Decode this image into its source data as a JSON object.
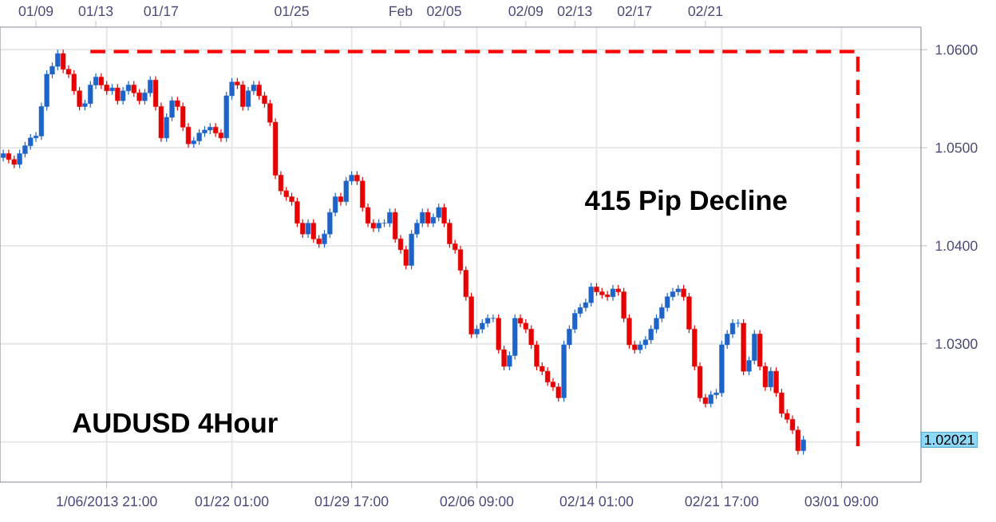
{
  "chart_data": {
    "type": "candlestick",
    "categories": [
      null,
      null,
      null,
      null,
      null,
      null,
      null,
      null,
      null,
      null,
      null,
      null,
      null,
      null,
      null,
      null,
      null,
      null,
      null,
      "1/06/2013 21:00",
      null,
      null,
      null,
      null,
      null,
      null,
      null,
      null,
      null,
      null,
      null,
      null,
      null,
      null,
      null,
      null,
      null,
      null,
      null,
      null,
      null,
      null,
      "01/22 01:00",
      null,
      null,
      null,
      null,
      null,
      null,
      null,
      null,
      null,
      null,
      null,
      null,
      null,
      null,
      null,
      null,
      null,
      null,
      null,
      null,
      null,
      "01/29 17:00",
      null,
      null,
      null,
      null,
      null,
      null,
      null,
      null,
      null,
      null,
      null,
      null,
      null,
      null,
      null,
      null,
      null,
      null,
      null,
      null,
      null,
      null,
      "02/06 09:00",
      null,
      null,
      null,
      null,
      null,
      null,
      null,
      null,
      null,
      null,
      null,
      null,
      null,
      null,
      null,
      null,
      null,
      null,
      null,
      null,
      null,
      "02/14 01:00",
      null,
      null,
      null,
      null,
      null,
      null,
      null,
      null,
      null,
      null,
      null,
      null,
      null,
      null,
      null,
      null,
      null,
      null,
      null,
      null,
      null,
      null,
      "02/21 17:00",
      null,
      null,
      null,
      null,
      null,
      null,
      null,
      null,
      null,
      null,
      null,
      null,
      null,
      null,
      null,
      null,
      null,
      null,
      null,
      null,
      null,
      "03/01 09:00",
      null,
      null,
      null,
      null,
      null,
      null,
      null,
      null,
      null,
      null,
      null,
      null,
      null,
      null
    ],
    "ylim": [
      1.0159,
      1.0623
    ],
    "yticks": [
      {
        "value": 1.02,
        "label": null
      },
      {
        "value": 1.03,
        "label": "1.0300"
      },
      {
        "value": 1.04,
        "label": "1.0400"
      },
      {
        "value": 1.05,
        "label": "1.0500"
      },
      {
        "value": 1.06,
        "label": "1.0600"
      }
    ],
    "grid": true,
    "annotations": [
      "415 Pip Decline",
      "AUDUSD 4Hour",
      "1.02021",
      "01/09",
      "01/13",
      "01/17",
      "01/25",
      "Feb",
      "02/05",
      "02/09",
      "02/13",
      "02/17",
      "02/21"
    ],
    "series": [
      {
        "colors": [
          "#1e64c8",
          "#e60000",
          "#e60000",
          "#1e64c8",
          "#1e64c8",
          "#1e64c8",
          "#1e64c8",
          "#1e64c8",
          "#1e64c8",
          "#1e64c8",
          "#1e64c8",
          "#e60000",
          "#e60000",
          "#e60000",
          "#e60000",
          "#1e64c8",
          "#1e64c8",
          "#1e64c8",
          "#e60000",
          "#e60000",
          "#1e64c8",
          "#e60000",
          "#1e64c8",
          "#1e64c8",
          "#e60000",
          "#e60000",
          "#1e64c8",
          "#1e64c8",
          "#e60000",
          "#e60000",
          "#1e64c8",
          "#1e64c8",
          "#e60000",
          "#e60000",
          "#e60000",
          "#1e64c8",
          "#1e64c8",
          "#1e64c8",
          "#1e64c8",
          "#e60000",
          "#e60000",
          "#1e64c8",
          "#1e64c8",
          "#e60000",
          "#e60000",
          "#1e64c8",
          "#1e64c8",
          "#e60000",
          "#e60000",
          "#e60000",
          "#e60000",
          "#e60000",
          "#e60000",
          "#e60000",
          "#e60000",
          "#e60000",
          "#1e64c8",
          "#e60000",
          "#e60000",
          "#1e64c8",
          "#1e64c8",
          "#1e64c8",
          "#e60000",
          "#1e64c8",
          "#1e64c8",
          "#e60000",
          "#e60000",
          "#e60000",
          "#e60000",
          "#1e64c8",
          "#1e64c8",
          "#1e64c8",
          "#e60000",
          "#e60000",
          "#e60000",
          "#1e64c8",
          "#1e64c8",
          "#1e64c8",
          "#e60000",
          "#1e64c8",
          "#1e64c8",
          "#e60000",
          "#e60000",
          "#e60000",
          "#e60000",
          "#e60000",
          "#e60000",
          "#1e64c8",
          "#1e64c8",
          "#1e64c8",
          "#1e64c8",
          "#e60000",
          "#e60000",
          "#1e64c8",
          "#1e64c8",
          "#e60000",
          "#e60000",
          "#e60000",
          "#e60000",
          "#e60000",
          "#e60000",
          "#e60000",
          "#e60000",
          "#1e64c8",
          "#1e64c8",
          "#1e64c8",
          "#1e64c8",
          "#1e64c8",
          "#1e64c8",
          "#e60000",
          "#e60000",
          "#e60000",
          "#1e64c8",
          "#e60000",
          "#e60000",
          "#e60000",
          "#e60000",
          "#1e64c8",
          "#1e64c8",
          "#1e64c8",
          "#1e64c8",
          "#1e64c8",
          "#1e64c8",
          "#1e64c8",
          "#1e64c8",
          "#e60000",
          "#e60000",
          "#e60000",
          "#e60000",
          "#e60000",
          "#1e64c8",
          "#1e64c8",
          "#1e64c8",
          "#1e64c8",
          "#1e64c8",
          "#1e64c8",
          "#e60000",
          "#1e64c8",
          "#1e64c8",
          "#e60000",
          "#e60000",
          "#1e64c8",
          "#e60000",
          "#e60000",
          "#e60000",
          "#e60000",
          "#e60000",
          "#1e64c8",
          null,
          null,
          null,
          null,
          null,
          null,
          null,
          null,
          null,
          null,
          null,
          null,
          null,
          null,
          null,
          null,
          null,
          null,
          null,
          null,
          null
        ],
        "ohlc": [
          [
            1.049,
            1.0498,
            1.0486,
            1.0494
          ],
          [
            1.0494,
            1.0498,
            1.0484,
            1.0488
          ],
          [
            1.0488,
            1.0492,
            1.0479,
            1.0483
          ],
          [
            1.0483,
            1.0498,
            1.0479,
            1.0494
          ],
          [
            1.0494,
            1.0506,
            1.049,
            1.0502
          ],
          [
            1.0502,
            1.0514,
            1.0498,
            1.051
          ],
          [
            1.051,
            1.0516,
            1.0506,
            1.0512
          ],
          [
            1.0512,
            1.0546,
            1.0508,
            1.0542
          ],
          [
            1.0542,
            1.0579,
            1.0538,
            1.0575
          ],
          [
            1.0575,
            1.0587,
            1.0571,
            1.0583
          ],
          [
            1.0583,
            1.06,
            1.0579,
            1.0596
          ],
          [
            1.0596,
            1.06,
            1.0576,
            1.058
          ],
          [
            1.058,
            1.0584,
            1.0571,
            1.0575
          ],
          [
            1.0575,
            1.0579,
            1.0554,
            1.0558
          ],
          [
            1.0558,
            1.0562,
            1.0538,
            1.0542
          ],
          [
            1.0542,
            1.0549,
            1.0538,
            1.0545
          ],
          [
            1.0545,
            1.0568,
            1.0541,
            1.0564
          ],
          [
            1.0564,
            1.0576,
            1.056,
            1.0572
          ],
          [
            1.0572,
            1.0576,
            1.056,
            1.0564
          ],
          [
            1.0564,
            1.0568,
            1.0554,
            1.0558
          ],
          [
            1.0558,
            1.0565,
            1.0554,
            1.0561
          ],
          [
            1.0561,
            1.0565,
            1.0544,
            1.0548
          ],
          [
            1.0548,
            1.0562,
            1.0544,
            1.0558
          ],
          [
            1.0558,
            1.0568,
            1.0554,
            1.0564
          ],
          [
            1.0564,
            1.0568,
            1.0552,
            1.0556
          ],
          [
            1.0556,
            1.056,
            1.0544,
            1.0548
          ],
          [
            1.0548,
            1.056,
            1.0544,
            1.0556
          ],
          [
            1.0556,
            1.0573,
            1.0552,
            1.0569
          ],
          [
            1.0569,
            1.0573,
            1.0538,
            1.0542
          ],
          [
            1.0542,
            1.0546,
            1.0506,
            1.051
          ],
          [
            1.051,
            1.0535,
            1.0506,
            1.0531
          ],
          [
            1.0531,
            1.0552,
            1.0527,
            1.0548
          ],
          [
            1.0548,
            1.0552,
            1.0538,
            1.0542
          ],
          [
            1.0542,
            1.0546,
            1.0517,
            1.0521
          ],
          [
            1.0521,
            1.0525,
            1.05,
            1.0504
          ],
          [
            1.0504,
            1.0511,
            1.05,
            1.0507
          ],
          [
            1.0507,
            1.0519,
            1.0503,
            1.0515
          ],
          [
            1.0515,
            1.0522,
            1.0511,
            1.0518
          ],
          [
            1.0518,
            1.0525,
            1.0514,
            1.0521
          ],
          [
            1.0521,
            1.0525,
            1.0511,
            1.0515
          ],
          [
            1.0515,
            1.0519,
            1.0506,
            1.051
          ],
          [
            1.051,
            1.0557,
            1.0506,
            1.0553
          ],
          [
            1.0553,
            1.0571,
            1.0549,
            1.0567
          ],
          [
            1.0567,
            1.0571,
            1.056,
            1.0564
          ],
          [
            1.0564,
            1.0568,
            1.0538,
            1.0542
          ],
          [
            1.0542,
            1.0562,
            1.0538,
            1.0558
          ],
          [
            1.0558,
            1.0568,
            1.0554,
            1.0564
          ],
          [
            1.0564,
            1.0568,
            1.0549,
            1.0553
          ],
          [
            1.0553,
            1.0557,
            1.0541,
            1.0545
          ],
          [
            1.0545,
            1.0549,
            1.0522,
            1.0526
          ],
          [
            1.0526,
            1.053,
            1.0468,
            1.0472
          ],
          [
            1.0472,
            1.0476,
            1.0452,
            1.0456
          ],
          [
            1.0456,
            1.046,
            1.0446,
            1.045
          ],
          [
            1.045,
            1.0454,
            1.0441,
            1.0445
          ],
          [
            1.0445,
            1.0449,
            1.0419,
            1.0423
          ],
          [
            1.0423,
            1.0427,
            1.0408,
            1.0412
          ],
          [
            1.0412,
            1.0427,
            1.0408,
            1.0423
          ],
          [
            1.0423,
            1.0427,
            1.0403,
            1.0407
          ],
          [
            1.0407,
            1.0411,
            1.0398,
            1.0402
          ],
          [
            1.0402,
            1.0416,
            1.0398,
            1.0412
          ],
          [
            1.0412,
            1.0438,
            1.0408,
            1.0434
          ],
          [
            1.0434,
            1.0454,
            1.043,
            1.045
          ],
          [
            1.045,
            1.0454,
            1.0441,
            1.0445
          ],
          [
            1.0445,
            1.047,
            1.0441,
            1.0466
          ],
          [
            1.0466,
            1.0476,
            1.0462,
            1.0472
          ],
          [
            1.0472,
            1.0476,
            1.0462,
            1.0466
          ],
          [
            1.0466,
            1.047,
            1.0435,
            1.0439
          ],
          [
            1.0439,
            1.0443,
            1.0419,
            1.0423
          ],
          [
            1.0423,
            1.0427,
            1.0414,
            1.0418
          ],
          [
            1.0418,
            1.0427,
            1.0414,
            1.0423
          ],
          [
            1.0423,
            1.0427,
            1.0419,
            1.0423
          ],
          [
            1.0423,
            1.0438,
            1.0419,
            1.0434
          ],
          [
            1.0434,
            1.0438,
            1.0403,
            1.0407
          ],
          [
            1.0407,
            1.0411,
            1.0392,
            1.0396
          ],
          [
            1.0396,
            1.04,
            1.0376,
            1.038
          ],
          [
            1.038,
            1.0416,
            1.0376,
            1.0412
          ],
          [
            1.0412,
            1.0427,
            1.0408,
            1.0423
          ],
          [
            1.0423,
            1.0438,
            1.0419,
            1.0434
          ],
          [
            1.0434,
            1.0438,
            1.0419,
            1.0423
          ],
          [
            1.0423,
            1.0433,
            1.0419,
            1.0429
          ],
          [
            1.0429,
            1.0443,
            1.0425,
            1.0439
          ],
          [
            1.0439,
            1.0443,
            1.0419,
            1.0423
          ],
          [
            1.0423,
            1.0427,
            1.0398,
            1.0402
          ],
          [
            1.0402,
            1.0406,
            1.0392,
            1.0396
          ],
          [
            1.0396,
            1.04,
            1.0371,
            1.0375
          ],
          [
            1.0375,
            1.0379,
            1.0344,
            1.0348
          ],
          [
            1.0348,
            1.0352,
            1.0306,
            1.031
          ],
          [
            1.031,
            1.0319,
            1.0306,
            1.0315
          ],
          [
            1.0315,
            1.0325,
            1.0311,
            1.0321
          ],
          [
            1.0321,
            1.033,
            1.0317,
            1.0326
          ],
          [
            1.0326,
            1.033,
            1.0322,
            1.0326
          ],
          [
            1.0326,
            1.033,
            1.029,
            1.0294
          ],
          [
            1.0294,
            1.0298,
            1.0273,
            1.0277
          ],
          [
            1.0277,
            1.0292,
            1.0273,
            1.0288
          ],
          [
            1.0288,
            1.033,
            1.0284,
            1.0326
          ],
          [
            1.0326,
            1.033,
            1.0317,
            1.0321
          ],
          [
            1.0321,
            1.0325,
            1.0311,
            1.0315
          ],
          [
            1.0315,
            1.0319,
            1.0295,
            1.0299
          ],
          [
            1.0299,
            1.0303,
            1.0273,
            1.0277
          ],
          [
            1.0277,
            1.0281,
            1.0268,
            1.0272
          ],
          [
            1.0272,
            1.0276,
            1.0257,
            1.0261
          ],
          [
            1.0261,
            1.0265,
            1.0252,
            1.0256
          ],
          [
            1.0256,
            1.026,
            1.0241,
            1.0245
          ],
          [
            1.0245,
            1.0303,
            1.0241,
            1.0299
          ],
          [
            1.0299,
            1.0319,
            1.0295,
            1.0315
          ],
          [
            1.0315,
            1.0335,
            1.0311,
            1.0331
          ],
          [
            1.0331,
            1.0341,
            1.0327,
            1.0337
          ],
          [
            1.0337,
            1.0346,
            1.0333,
            1.0342
          ],
          [
            1.0342,
            1.0362,
            1.0338,
            1.0358
          ],
          [
            1.0358,
            1.0362,
            1.0349,
            1.0353
          ],
          [
            1.0353,
            1.0357,
            1.0346,
            1.035
          ],
          [
            1.035,
            1.0354,
            1.0344,
            1.0348
          ],
          [
            1.0348,
            1.036,
            1.0344,
            1.0356
          ],
          [
            1.0356,
            1.036,
            1.0349,
            1.0353
          ],
          [
            1.0353,
            1.0357,
            1.0322,
            1.0326
          ],
          [
            1.0326,
            1.033,
            1.0295,
            1.0299
          ],
          [
            1.0299,
            1.0303,
            1.029,
            1.0294
          ],
          [
            1.0294,
            1.0303,
            1.029,
            1.0299
          ],
          [
            1.0299,
            1.0308,
            1.0295,
            1.0304
          ],
          [
            1.0304,
            1.0319,
            1.03,
            1.0315
          ],
          [
            1.0315,
            1.033,
            1.0311,
            1.0326
          ],
          [
            1.0326,
            1.0341,
            1.0322,
            1.0337
          ],
          [
            1.0337,
            1.0352,
            1.0333,
            1.0348
          ],
          [
            1.0348,
            1.0357,
            1.0344,
            1.0353
          ],
          [
            1.0353,
            1.036,
            1.0349,
            1.0356
          ],
          [
            1.0356,
            1.036,
            1.0344,
            1.0348
          ],
          [
            1.0348,
            1.0352,
            1.0311,
            1.0315
          ],
          [
            1.0315,
            1.0319,
            1.0273,
            1.0277
          ],
          [
            1.0277,
            1.0281,
            1.0241,
            1.0245
          ],
          [
            1.0245,
            1.0249,
            1.0235,
            1.0239
          ],
          [
            1.0239,
            1.0252,
            1.0235,
            1.0248
          ],
          [
            1.0248,
            1.0254,
            1.0244,
            1.025
          ],
          [
            1.025,
            1.0303,
            1.0246,
            1.0299
          ],
          [
            1.0299,
            1.0314,
            1.0295,
            1.031
          ],
          [
            1.031,
            1.0325,
            1.0306,
            1.0321
          ],
          [
            1.0321,
            1.0325,
            1.0317,
            1.0321
          ],
          [
            1.0321,
            1.0325,
            1.0268,
            1.0272
          ],
          [
            1.0272,
            1.0287,
            1.0268,
            1.0283
          ],
          [
            1.0283,
            1.0314,
            1.0279,
            1.031
          ],
          [
            1.031,
            1.0314,
            1.0273,
            1.0277
          ],
          [
            1.0277,
            1.0281,
            1.0252,
            1.0256
          ],
          [
            1.0256,
            1.0276,
            1.0252,
            1.0272
          ],
          [
            1.0272,
            1.0276,
            1.0246,
            1.025
          ],
          [
            1.025,
            1.0254,
            1.0225,
            1.0229
          ],
          [
            1.0229,
            1.0233,
            1.0219,
            1.0223
          ],
          [
            1.0223,
            1.0227,
            1.0208,
            1.0212
          ],
          [
            1.0212,
            1.0216,
            1.0187,
            1.0191
          ],
          [
            1.0191,
            1.0206,
            1.0187,
            1.0202
          ],
          null,
          null,
          null,
          null,
          null,
          null,
          null,
          null,
          null,
          null,
          null,
          null,
          null,
          null,
          null,
          null,
          null,
          null,
          null,
          null,
          null
        ]
      },
      {
        "type": "step",
        "color": "#ff0000",
        "line_style": "dashed",
        "values": [
          null,
          null,
          null,
          null,
          null,
          null,
          null,
          null,
          null,
          null,
          null,
          null,
          null,
          null,
          null,
          null,
          1.0598,
          null,
          null,
          null,
          null,
          null,
          null,
          null,
          null,
          null,
          null,
          null,
          null,
          null,
          null,
          null,
          null,
          null,
          null,
          null,
          null,
          null,
          null,
          null,
          null,
          null,
          null,
          null,
          null,
          null,
          null,
          null,
          null,
          null,
          null,
          null,
          null,
          null,
          null,
          null,
          null,
          null,
          null,
          null,
          null,
          null,
          null,
          null,
          null,
          null,
          null,
          null,
          null,
          null,
          null,
          null,
          null,
          null,
          null,
          null,
          null,
          null,
          null,
          null,
          null,
          null,
          null,
          null,
          null,
          null,
          null,
          null,
          null,
          null,
          null,
          null,
          null,
          null,
          null,
          null,
          null,
          null,
          null,
          null,
          null,
          null,
          null,
          null,
          null,
          null,
          null,
          null,
          null,
          null,
          null,
          null,
          null,
          null,
          null,
          null,
          null,
          null,
          null,
          null,
          null,
          null,
          null,
          null,
          null,
          null,
          null,
          null,
          null,
          null,
          null,
          null,
          null,
          null,
          null,
          null,
          null,
          null,
          null,
          null,
          null,
          null,
          null,
          null,
          null,
          null,
          null,
          null,
          null,
          null,
          null,
          null,
          null,
          null,
          null,
          null,
          null,
          1.0194,
          null,
          null,
          null,
          null,
          null,
          null,
          null,
          null,
          null,
          null,
          null
        ]
      }
    ]
  }
}
